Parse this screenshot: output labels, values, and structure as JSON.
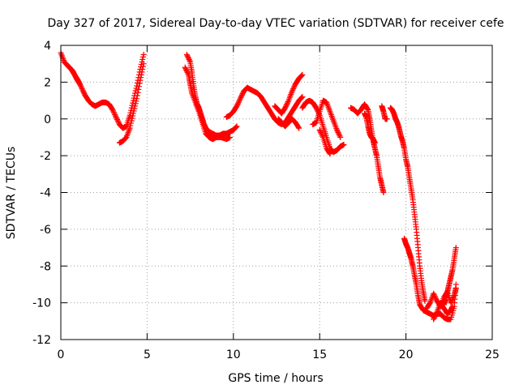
{
  "chart_data": {
    "type": "scatter",
    "title": "Day 327 of 2017, Sidereal Day-to-day VTEC variation (SDTVAR) for receiver cefe",
    "xlabel": "GPS time / hours",
    "ylabel": "SDTVAR / TECUs",
    "xlim": [
      0,
      25
    ],
    "ylim": [
      -12,
      4
    ],
    "xticks": [
      0,
      5,
      10,
      15,
      20,
      25
    ],
    "yticks": [
      -12,
      -10,
      -8,
      -6,
      -4,
      -2,
      0,
      2,
      4
    ],
    "xtick_labels": [
      "0",
      "5",
      "10",
      "15",
      "20",
      "25"
    ],
    "ytick_labels": [
      "-12",
      "-10",
      "-8",
      "-6",
      "-4",
      "-2",
      "0",
      "2",
      "4"
    ],
    "grid": true,
    "marker": "+",
    "color": "#ff0000",
    "series": [
      {
        "name": "SDTVAR",
        "segments": [
          [
            [
              0.0,
              3.6
            ],
            [
              0.2,
              3.1
            ],
            [
              0.4,
              2.9
            ],
            [
              0.6,
              2.7
            ],
            [
              0.8,
              2.4
            ],
            [
              1.0,
              2.1
            ],
            [
              1.2,
              1.7
            ],
            [
              1.4,
              1.3
            ],
            [
              1.6,
              1.0
            ],
            [
              1.8,
              0.8
            ],
            [
              2.0,
              0.7
            ],
            [
              2.2,
              0.8
            ],
            [
              2.4,
              0.9
            ],
            [
              2.6,
              0.9
            ],
            [
              2.8,
              0.8
            ],
            [
              3.0,
              0.5
            ],
            [
              3.2,
              0.1
            ],
            [
              3.4,
              -0.3
            ],
            [
              3.6,
              -0.5
            ],
            [
              3.8,
              -0.4
            ],
            [
              4.0,
              0.2
            ],
            [
              4.2,
              1.0
            ],
            [
              4.4,
              1.8
            ],
            [
              4.6,
              2.7
            ],
            [
              4.8,
              3.5
            ]
          ],
          [
            [
              0.3,
              3.0
            ],
            [
              0.5,
              2.8
            ],
            [
              0.7,
              2.6
            ],
            [
              0.9,
              2.2
            ],
            [
              1.1,
              1.9
            ]
          ],
          [
            [
              3.4,
              -1.3
            ],
            [
              3.6,
              -1.2
            ],
            [
              3.8,
              -1.0
            ],
            [
              4.0,
              -0.5
            ],
            [
              4.2,
              0.3
            ],
            [
              4.4,
              1.1
            ],
            [
              4.6,
              2.1
            ],
            [
              4.8,
              3.0
            ]
          ],
          [
            [
              7.3,
              3.5
            ],
            [
              7.5,
              3.1
            ],
            [
              7.6,
              2.5
            ],
            [
              7.7,
              1.8
            ],
            [
              7.8,
              1.2
            ],
            [
              7.9,
              0.8
            ],
            [
              8.0,
              0.6
            ],
            [
              8.1,
              0.3
            ],
            [
              8.2,
              0.0
            ],
            [
              8.3,
              -0.3
            ],
            [
              8.4,
              -0.5
            ],
            [
              8.6,
              -0.7
            ],
            [
              8.8,
              -0.8
            ],
            [
              9.0,
              -0.9
            ],
            [
              9.2,
              -0.9
            ],
            [
              9.4,
              -0.8
            ],
            [
              9.6,
              -0.8
            ],
            [
              9.8,
              -0.7
            ],
            [
              10.0,
              -0.6
            ],
            [
              10.2,
              -0.4
            ]
          ],
          [
            [
              7.2,
              2.8
            ],
            [
              7.4,
              2.4
            ],
            [
              7.5,
              1.9
            ],
            [
              7.6,
              1.4
            ],
            [
              7.8,
              0.9
            ],
            [
              8.0,
              0.4
            ],
            [
              8.2,
              -0.2
            ],
            [
              8.4,
              -0.8
            ],
            [
              8.6,
              -1.0
            ],
            [
              8.8,
              -1.1
            ],
            [
              9.0,
              -1.0
            ],
            [
              9.3,
              -1.0
            ],
            [
              9.6,
              -1.1
            ],
            [
              9.8,
              -1.0
            ]
          ],
          [
            [
              9.6,
              0.1
            ],
            [
              9.8,
              0.2
            ],
            [
              10.0,
              0.4
            ],
            [
              10.2,
              0.7
            ],
            [
              10.4,
              1.1
            ],
            [
              10.6,
              1.5
            ],
            [
              10.8,
              1.7
            ],
            [
              11.0,
              1.6
            ],
            [
              11.2,
              1.5
            ],
            [
              11.4,
              1.4
            ],
            [
              11.6,
              1.2
            ],
            [
              11.8,
              0.9
            ],
            [
              12.0,
              0.6
            ],
            [
              12.2,
              0.3
            ],
            [
              12.4,
              0.0
            ],
            [
              12.6,
              -0.2
            ],
            [
              12.8,
              -0.3
            ],
            [
              13.0,
              -0.2
            ],
            [
              13.2,
              0.1
            ],
            [
              13.4,
              0.4
            ],
            [
              13.6,
              0.7
            ],
            [
              13.8,
              1.0
            ],
            [
              14.0,
              1.2
            ]
          ],
          [
            [
              12.4,
              0.7
            ],
            [
              12.6,
              0.5
            ],
            [
              12.8,
              0.3
            ],
            [
              13.0,
              0.6
            ],
            [
              13.2,
              1.0
            ],
            [
              13.4,
              1.5
            ],
            [
              13.6,
              1.9
            ],
            [
              13.8,
              2.2
            ],
            [
              14.0,
              2.4
            ]
          ],
          [
            [
              12.6,
              0.0
            ],
            [
              12.8,
              -0.2
            ],
            [
              13.0,
              -0.4
            ],
            [
              13.2,
              -0.2
            ],
            [
              13.4,
              0.0
            ],
            [
              13.6,
              -0.2
            ],
            [
              13.8,
              -0.5
            ]
          ],
          [
            [
              14.0,
              0.6
            ],
            [
              14.2,
              0.9
            ],
            [
              14.4,
              1.0
            ],
            [
              14.6,
              0.9
            ],
            [
              14.8,
              0.6
            ],
            [
              15.0,
              0.2
            ],
            [
              15.2,
              -0.4
            ],
            [
              15.4,
              -1.0
            ],
            [
              15.6,
              -1.6
            ],
            [
              15.8,
              -1.8
            ],
            [
              16.0,
              -1.7
            ],
            [
              16.2,
              -1.5
            ],
            [
              16.4,
              -1.4
            ]
          ],
          [
            [
              14.6,
              -0.3
            ],
            [
              14.8,
              -0.2
            ],
            [
              15.0,
              0.4
            ],
            [
              15.2,
              1.0
            ],
            [
              15.4,
              0.9
            ],
            [
              15.6,
              0.4
            ],
            [
              15.8,
              -0.1
            ],
            [
              16.0,
              -0.6
            ],
            [
              16.2,
              -1.0
            ]
          ],
          [
            [
              15.0,
              -0.6
            ],
            [
              15.2,
              -1.0
            ],
            [
              15.4,
              -1.6
            ],
            [
              15.6,
              -1.9
            ]
          ],
          [
            [
              16.8,
              0.6
            ],
            [
              17.0,
              0.5
            ],
            [
              17.2,
              0.3
            ],
            [
              17.4,
              0.5
            ],
            [
              17.6,
              0.8
            ],
            [
              17.8,
              0.5
            ],
            [
              17.9,
              0.0
            ],
            [
              18.0,
              -0.6
            ],
            [
              18.1,
              -1.2
            ],
            [
              18.2,
              -1.6
            ],
            [
              18.3,
              -2.0
            ],
            [
              18.4,
              -2.6
            ],
            [
              18.5,
              -3.2
            ],
            [
              18.6,
              -3.6
            ],
            [
              18.7,
              -4.0
            ]
          ],
          [
            [
              17.6,
              0.3
            ],
            [
              17.7,
              0.1
            ],
            [
              17.8,
              -0.4
            ],
            [
              17.9,
              -0.8
            ],
            [
              18.0,
              -1.0
            ],
            [
              18.1,
              -1.1
            ],
            [
              18.2,
              -1.3
            ]
          ],
          [
            [
              18.6,
              0.7
            ],
            [
              18.7,
              0.4
            ],
            [
              18.8,
              0.0
            ],
            [
              18.9,
              0.0
            ]
          ],
          [
            [
              19.1,
              0.6
            ],
            [
              19.2,
              0.5
            ],
            [
              19.3,
              0.3
            ],
            [
              19.4,
              0.0
            ],
            [
              19.5,
              -0.2
            ],
            [
              19.6,
              -0.5
            ],
            [
              19.7,
              -0.9
            ],
            [
              19.8,
              -1.2
            ],
            [
              19.9,
              -1.6
            ],
            [
              20.0,
              -2.2
            ],
            [
              20.1,
              -2.6
            ],
            [
              20.2,
              -3.2
            ],
            [
              20.3,
              -3.8
            ],
            [
              20.4,
              -4.4
            ],
            [
              20.5,
              -5.2
            ],
            [
              20.6,
              -6.0
            ],
            [
              20.7,
              -7.0
            ],
            [
              20.8,
              -8.0
            ],
            [
              20.9,
              -8.8
            ],
            [
              21.0,
              -9.4
            ],
            [
              21.1,
              -9.9
            ]
          ],
          [
            [
              19.9,
              -6.5
            ],
            [
              20.0,
              -6.8
            ],
            [
              20.1,
              -7.0
            ],
            [
              20.2,
              -7.3
            ],
            [
              20.3,
              -7.6
            ],
            [
              20.4,
              -8.0
            ],
            [
              20.5,
              -8.5
            ],
            [
              20.6,
              -9.0
            ],
            [
              20.7,
              -9.6
            ],
            [
              20.8,
              -10.1
            ],
            [
              21.0,
              -10.4
            ],
            [
              21.2,
              -10.5
            ],
            [
              21.4,
              -10.6
            ],
            [
              21.6,
              -10.7
            ],
            [
              21.8,
              -10.6
            ],
            [
              22.0,
              -10.6
            ],
            [
              22.2,
              -10.8
            ],
            [
              22.4,
              -10.9
            ],
            [
              22.6,
              -10.9
            ],
            [
              22.8,
              -10.2
            ],
            [
              22.9,
              -9.0
            ]
          ],
          [
            [
              21.2,
              -10.3
            ],
            [
              21.4,
              -10.0
            ],
            [
              21.6,
              -9.5
            ],
            [
              21.8,
              -9.9
            ],
            [
              22.0,
              -10.2
            ],
            [
              22.2,
              -9.7
            ],
            [
              22.4,
              -9.4
            ],
            [
              22.6,
              -10.0
            ],
            [
              22.8,
              -9.6
            ],
            [
              22.9,
              -9.2
            ]
          ],
          [
            [
              21.6,
              -10.9
            ],
            [
              21.8,
              -10.5
            ],
            [
              22.0,
              -10.0
            ],
            [
              22.2,
              -10.3
            ],
            [
              22.4,
              -10.6
            ],
            [
              22.6,
              -10.4
            ],
            [
              22.7,
              -10.2
            ]
          ],
          [
            [
              22.2,
              -10.1
            ],
            [
              22.3,
              -9.8
            ],
            [
              22.4,
              -9.4
            ],
            [
              22.5,
              -9.0
            ],
            [
              22.6,
              -8.6
            ],
            [
              22.7,
              -8.2
            ],
            [
              22.8,
              -7.6
            ],
            [
              22.9,
              -7.0
            ]
          ]
        ]
      }
    ]
  }
}
